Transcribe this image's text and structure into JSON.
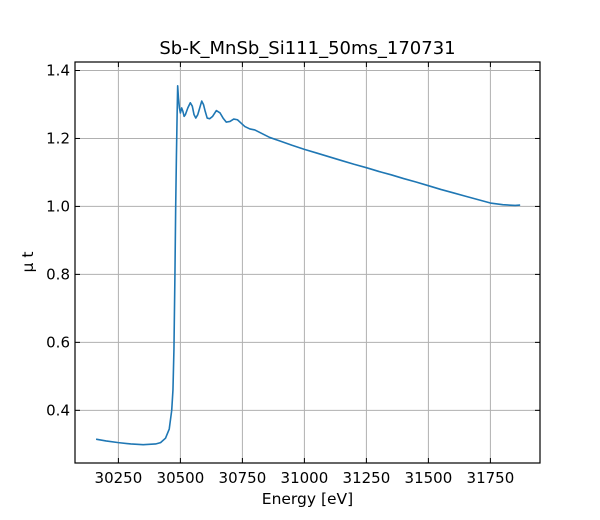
{
  "chart_data": {
    "type": "line",
    "title": "Sb-K_MnSb_Si111_50ms_170731",
    "xlabel": "Energy [eV]",
    "ylabel": "μ t",
    "xlim": [
      30075,
      31950
    ],
    "ylim": [
      0.245,
      1.425
    ],
    "xticks": [
      30250,
      30500,
      30750,
      31000,
      31250,
      31500,
      31750
    ],
    "yticks": [
      0.4,
      0.6,
      0.8,
      1.0,
      1.2,
      1.4
    ],
    "xtick_labels": [
      "30250",
      "30500",
      "30750",
      "31000",
      "31250",
      "31500",
      "31750"
    ],
    "ytick_labels": [
      "0.4",
      "0.6",
      "0.8",
      "1.0",
      "1.2",
      "1.4"
    ],
    "grid": true,
    "series": [
      {
        "color": "#1f77b4",
        "x": [
          30160,
          30200,
          30250,
          30300,
          30350,
          30400,
          30420,
          30440,
          30455,
          30465,
          30470,
          30474,
          30478,
          30481,
          30484,
          30487,
          30489,
          30492,
          30496,
          30500,
          30505,
          30510,
          30515,
          30520,
          30530,
          30540,
          30548,
          30555,
          30562,
          30570,
          30578,
          30586,
          30593,
          30600,
          30608,
          30618,
          30630,
          30645,
          30660,
          30672,
          30685,
          30700,
          30715,
          30730,
          30745,
          30760,
          30780,
          30800,
          30830,
          30860,
          30900,
          30950,
          31000,
          31050,
          31100,
          31150,
          31200,
          31250,
          31300,
          31350,
          31400,
          31450,
          31500,
          31550,
          31600,
          31650,
          31700,
          31750,
          31800,
          31850,
          31870
        ],
        "y": [
          0.315,
          0.31,
          0.305,
          0.301,
          0.299,
          0.301,
          0.305,
          0.318,
          0.345,
          0.4,
          0.46,
          0.58,
          0.8,
          1.0,
          1.15,
          1.28,
          1.355,
          1.32,
          1.29,
          1.275,
          1.29,
          1.28,
          1.265,
          1.27,
          1.29,
          1.305,
          1.295,
          1.27,
          1.26,
          1.27,
          1.29,
          1.31,
          1.3,
          1.28,
          1.26,
          1.258,
          1.265,
          1.282,
          1.275,
          1.26,
          1.248,
          1.25,
          1.257,
          1.255,
          1.245,
          1.235,
          1.228,
          1.225,
          1.214,
          1.203,
          1.193,
          1.18,
          1.168,
          1.157,
          1.146,
          1.135,
          1.124,
          1.114,
          1.103,
          1.093,
          1.082,
          1.072,
          1.061,
          1.05,
          1.04,
          1.03,
          1.02,
          1.01,
          1.005,
          1.003,
          1.004
        ]
      }
    ]
  }
}
